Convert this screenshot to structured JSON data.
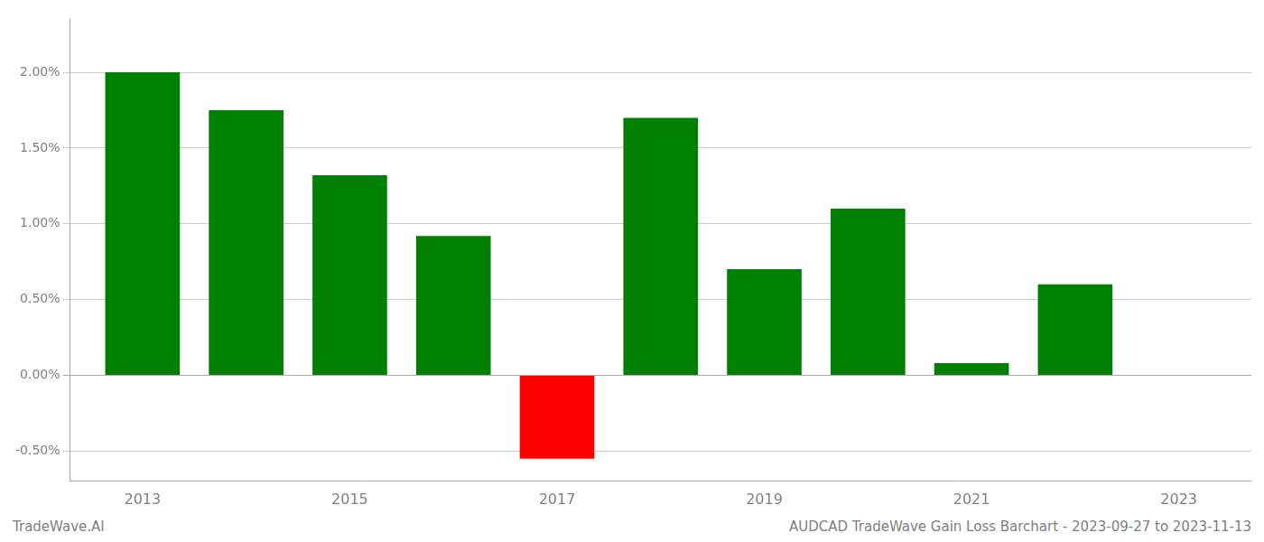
{
  "chart_data": {
    "type": "bar",
    "x": [
      2013,
      2014,
      2015,
      2016,
      2017,
      2018,
      2019,
      2020,
      2021,
      2022
    ],
    "values": [
      0.02,
      0.0175,
      0.0132,
      0.0092,
      -0.0055,
      0.017,
      0.007,
      0.011,
      0.0008,
      0.006
    ],
    "colors": [
      "#008000",
      "#008000",
      "#008000",
      "#008000",
      "#ff0000",
      "#008000",
      "#008000",
      "#008000",
      "#008000",
      "#008000"
    ],
    "xlim": [
      2012.3,
      2023.7
    ],
    "xticks": [
      2013,
      2015,
      2017,
      2019,
      2021,
      2023
    ],
    "ylim": [
      -0.007,
      0.0235
    ],
    "yticks": [
      {
        "value": -0.005,
        "label": "-0.50%"
      },
      {
        "value": 0.0,
        "label": "0.00%"
      },
      {
        "value": 0.005,
        "label": "0.50%"
      },
      {
        "value": 0.01,
        "label": "1.00%"
      },
      {
        "value": 0.015,
        "label": "1.50%"
      },
      {
        "value": 0.02,
        "label": "2.00%"
      }
    ],
    "grid": true,
    "annotations": [
      "TradeWave.AI",
      "AUDCAD TradeWave Gain Loss Barchart - 2023-09-27 to 2023-11-13"
    ]
  }
}
